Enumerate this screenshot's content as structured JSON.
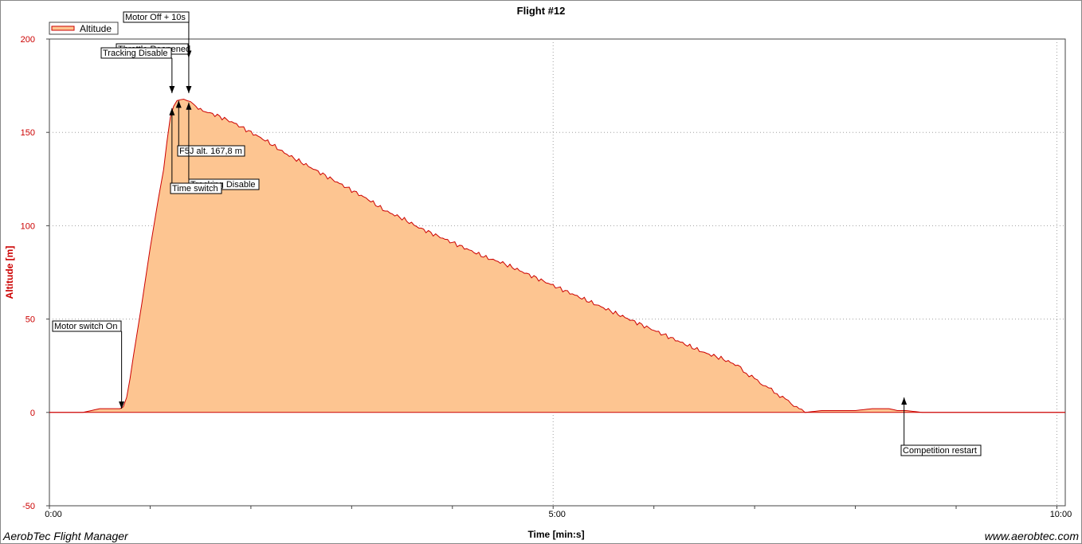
{
  "chart_data": {
    "type": "area",
    "title": "Flight #12",
    "xlabel": "Time [min:s]",
    "ylabel": "Altitude [m]",
    "xlim_s": [
      0,
      605
    ],
    "ylim": [
      -50,
      200
    ],
    "y_ticks": [
      -50,
      0,
      50,
      100,
      150,
      200
    ],
    "x_ticks": [
      {
        "t": 0,
        "label": "0:00"
      },
      {
        "t": 300,
        "label": "5:00"
      },
      {
        "t": 600,
        "label": "10:00"
      }
    ],
    "grid": true,
    "legend": {
      "position": "top-left",
      "entries": [
        "Altitude"
      ]
    },
    "colors": {
      "line": "#cc0000",
      "fill": "#fdc591",
      "grid": "#a0a0a0",
      "tick_label_y": "#cc0000"
    },
    "series": [
      {
        "name": "Altitude",
        "points": [
          [
            0,
            0
          ],
          [
            10,
            0
          ],
          [
            20,
            0
          ],
          [
            25,
            1
          ],
          [
            30,
            2
          ],
          [
            35,
            2
          ],
          [
            40,
            2
          ],
          [
            42,
            2
          ],
          [
            44,
            3
          ],
          [
            46,
            8
          ],
          [
            48,
            18
          ],
          [
            50,
            30
          ],
          [
            55,
            58
          ],
          [
            60,
            88
          ],
          [
            65,
            115
          ],
          [
            68,
            130
          ],
          [
            70,
            145
          ],
          [
            72,
            158
          ],
          [
            74,
            164
          ],
          [
            76,
            167
          ],
          [
            78,
            167.5
          ],
          [
            80,
            167.8
          ],
          [
            82,
            167
          ],
          [
            84,
            166.5
          ],
          [
            86,
            165
          ],
          [
            90,
            162
          ],
          [
            100,
            159
          ],
          [
            110,
            155
          ],
          [
            120,
            150
          ],
          [
            130,
            145
          ],
          [
            140,
            139
          ],
          [
            150,
            134
          ],
          [
            160,
            129
          ],
          [
            170,
            124
          ],
          [
            180,
            119
          ],
          [
            190,
            114
          ],
          [
            200,
            108
          ],
          [
            210,
            104
          ],
          [
            220,
            99
          ],
          [
            230,
            95
          ],
          [
            240,
            91
          ],
          [
            250,
            87
          ],
          [
            260,
            83
          ],
          [
            270,
            80
          ],
          [
            280,
            76
          ],
          [
            290,
            72
          ],
          [
            300,
            68
          ],
          [
            310,
            64
          ],
          [
            320,
            60
          ],
          [
            330,
            56
          ],
          [
            340,
            52
          ],
          [
            350,
            48
          ],
          [
            360,
            44
          ],
          [
            370,
            40
          ],
          [
            380,
            36
          ],
          [
            390,
            32
          ],
          [
            400,
            29
          ],
          [
            410,
            25
          ],
          [
            415,
            21
          ],
          [
            420,
            18
          ],
          [
            425,
            15
          ],
          [
            430,
            12
          ],
          [
            435,
            9
          ],
          [
            440,
            6
          ],
          [
            445,
            3
          ],
          [
            448,
            1
          ],
          [
            450,
            0
          ],
          [
            460,
            1
          ],
          [
            470,
            1
          ],
          [
            480,
            1
          ],
          [
            490,
            2
          ],
          [
            500,
            2
          ],
          [
            505,
            1
          ],
          [
            510,
            1
          ],
          [
            520,
            0
          ],
          [
            530,
            0
          ],
          [
            540,
            0
          ],
          [
            550,
            0
          ],
          [
            560,
            0
          ],
          [
            570,
            0
          ],
          [
            580,
            0
          ],
          [
            590,
            0
          ],
          [
            600,
            0
          ],
          [
            605,
            0
          ]
        ]
      }
    ],
    "annotations": [
      {
        "label": "Motor Off + 10s",
        "t": 83,
        "alt": 171
      },
      {
        "label": "Throttle Reopened",
        "t": 83,
        "alt": 190
      },
      {
        "label": "Tracking Disable",
        "t": 73,
        "alt": 171
      },
      {
        "label": "F5J alt. 167,8 m",
        "t": 77,
        "alt": 167
      },
      {
        "label": "Tracking Disable",
        "t": 83,
        "alt": 166
      },
      {
        "label": "Time switch",
        "t": 73,
        "alt": 163
      },
      {
        "label": "Motor switch On",
        "t": 43,
        "alt": 2
      },
      {
        "label": "Competition restart",
        "t": 509,
        "alt": 8
      }
    ]
  },
  "footer": {
    "left": "AerobTec Flight Manager",
    "right": "www.aerobtec.com"
  }
}
